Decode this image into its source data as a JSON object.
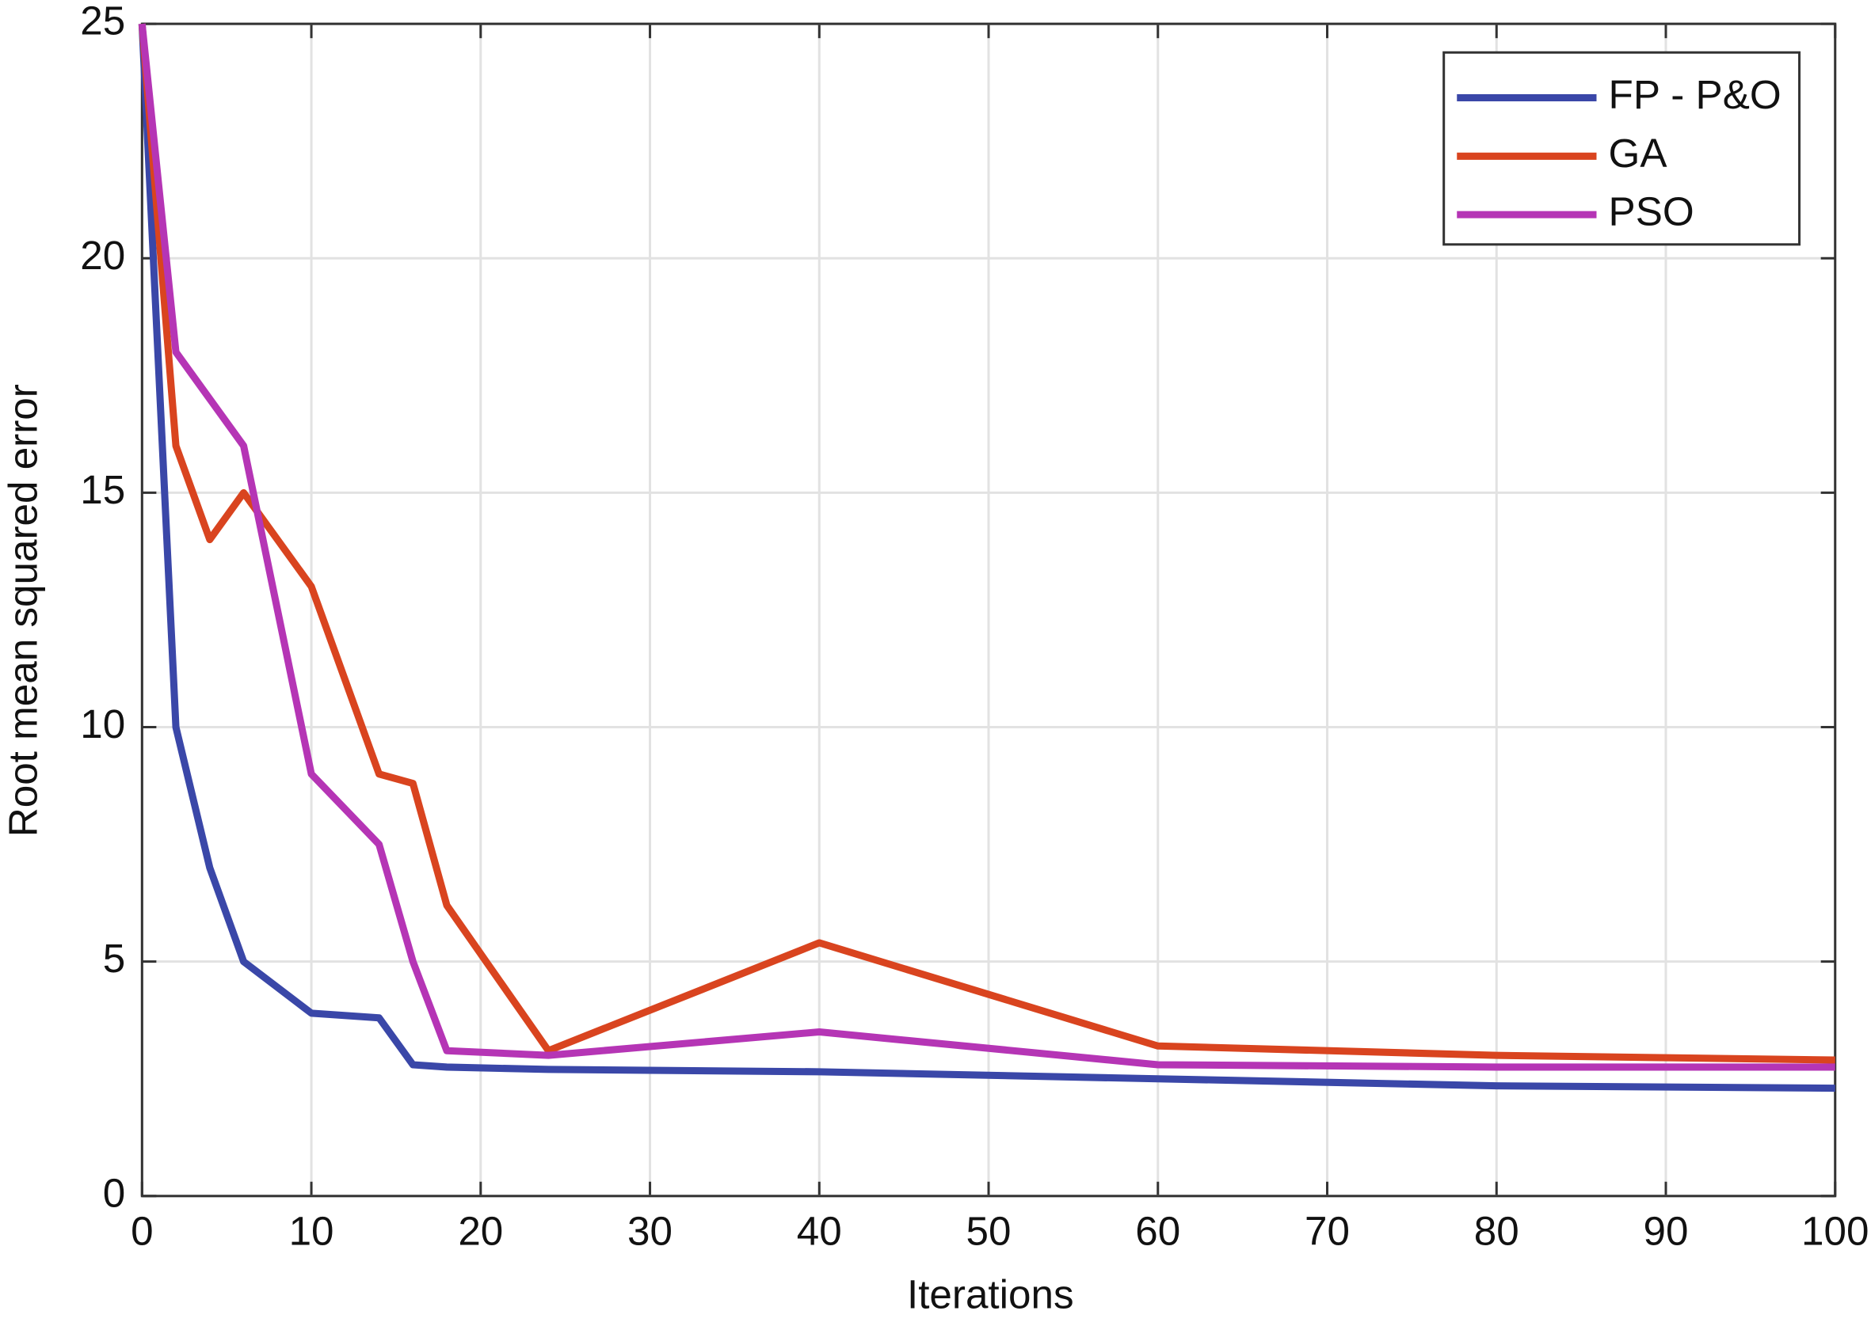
{
  "chart_data": {
    "type": "line",
    "xlabel": "Iterations",
    "ylabel": "Root mean squared error",
    "xlim": [
      0,
      100
    ],
    "ylim": [
      0,
      25
    ],
    "xticks": [
      0,
      10,
      20,
      30,
      40,
      50,
      60,
      70,
      80,
      90,
      100
    ],
    "yticks": [
      0,
      5,
      10,
      15,
      20,
      25
    ],
    "grid": true,
    "legend": "northeast",
    "series": [
      {
        "name": "FP - P&O",
        "color": "#3a47a8",
        "x": [
          0,
          2,
          4,
          6,
          10,
          14,
          16,
          18,
          24,
          40,
          60,
          80,
          100
        ],
        "values": [
          25,
          10,
          7,
          5,
          3.9,
          3.8,
          2.8,
          2.75,
          2.7,
          2.65,
          2.5,
          2.35,
          2.3
        ]
      },
      {
        "name": "GA",
        "color": "#d9441f",
        "x": [
          0,
          2,
          4,
          6,
          10,
          14,
          16,
          18,
          24,
          40,
          60,
          80,
          100
        ],
        "values": [
          25,
          16,
          14,
          15,
          13,
          9,
          8.8,
          6.2,
          3.1,
          5.4,
          3.2,
          3.0,
          2.9
        ]
      },
      {
        "name": "PSO",
        "color": "#b535b5",
        "x": [
          0,
          2,
          6,
          10,
          14,
          16,
          18,
          24,
          40,
          60,
          80,
          100
        ],
        "values": [
          25,
          18,
          16,
          9,
          7.5,
          5,
          3.1,
          3.0,
          3.5,
          2.8,
          2.75,
          2.75
        ]
      }
    ]
  }
}
